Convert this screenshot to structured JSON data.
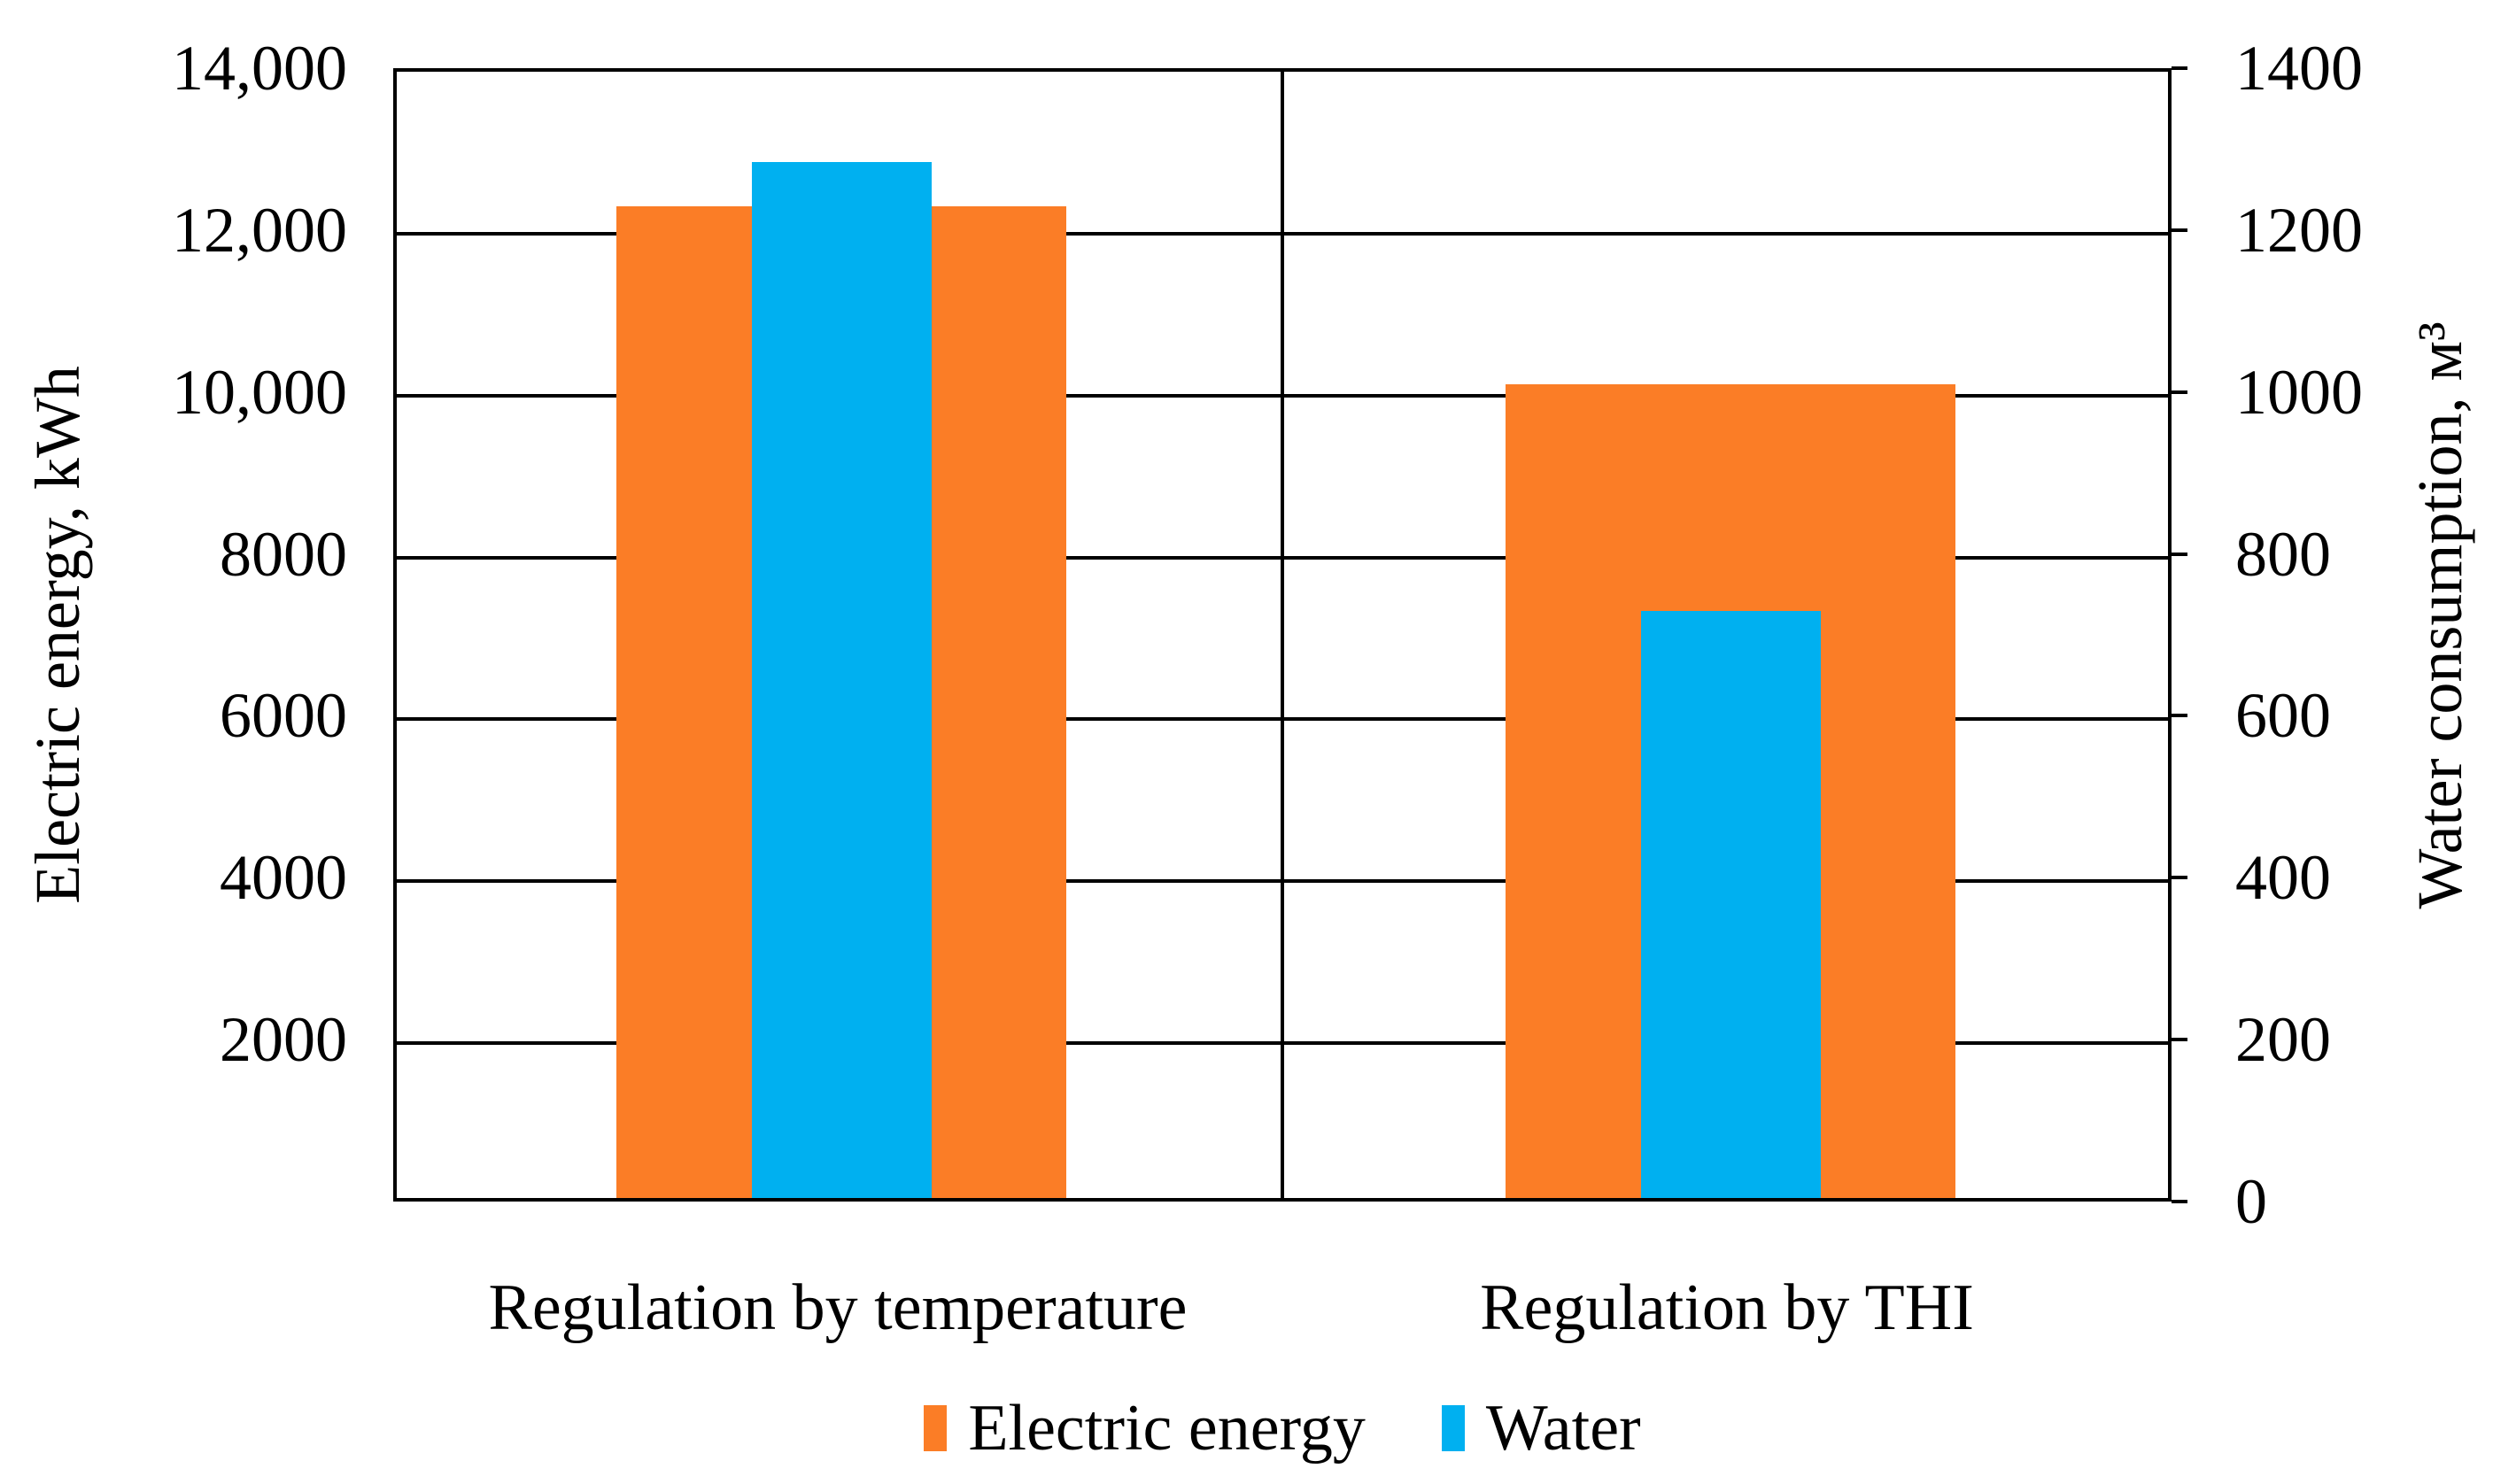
{
  "chart_data": {
    "type": "bar",
    "categories": [
      "Regulation by temperature",
      "Regulation by THI"
    ],
    "series": [
      {
        "name": "Electric energy",
        "axis": "left",
        "color": "#FB7D26",
        "values": [
          12250,
          10050
        ]
      },
      {
        "name": "Water",
        "axis": "right",
        "color": "#00B0F0",
        "values": [
          1280,
          725
        ]
      }
    ],
    "left_axis": {
      "title": "Electric energy, kWh",
      "min": 0,
      "max": 14000,
      "tick_step": 2000,
      "tick_labels": [
        "14,000",
        "12,000",
        "10,000",
        "8000",
        "6000",
        "4000",
        "2000"
      ]
    },
    "right_axis": {
      "title": "Water consumption, м³",
      "min": 0,
      "max": 1400,
      "tick_step": 200,
      "tick_labels": [
        "1400",
        "1200",
        "1000",
        "800",
        "600",
        "400",
        "200",
        "0"
      ]
    },
    "grid": "horizontal gridlines on, vertical divider between categories",
    "legend_position": "bottom",
    "plot_border_color": "#000000",
    "background_color": "#ffffff"
  }
}
